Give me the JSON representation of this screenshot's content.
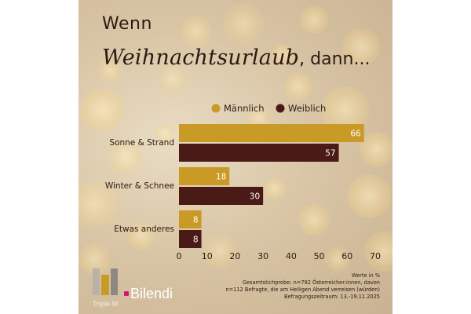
{
  "header": {
    "title_word1": "Wenn",
    "title_script": "Weihnachtsurlaub",
    "title_rest": ", dann..."
  },
  "chart_data": {
    "type": "bar",
    "orientation": "horizontal",
    "categories": [
      "Sonne & Strand",
      "Winter & Schnee",
      "Etwas anderes"
    ],
    "series": [
      {
        "name": "Männlich",
        "color": "#c99a26",
        "values": [
          66,
          18,
          8
        ]
      },
      {
        "name": "Weiblich",
        "color": "#4a1a17",
        "values": [
          57,
          30,
          8
        ]
      }
    ],
    "xlim": [
      0,
      70
    ],
    "xticks": [
      "0",
      "10",
      "20",
      "30",
      "40",
      "50",
      "60",
      "70"
    ],
    "legend_position": "top",
    "grid": false
  },
  "footnote": {
    "line1": "Werte in %",
    "line2": "Gesamtstichprobe: n=792 Österreicher:innen, davon",
    "line3": "n=112 Befragte, die am Heiligen Abend verreisen (würden)",
    "line4": "Befragungszeitraum: 13.-19.11.2025"
  },
  "logos": {
    "triplem": "Triple M",
    "bilendi": "Bilendi"
  }
}
